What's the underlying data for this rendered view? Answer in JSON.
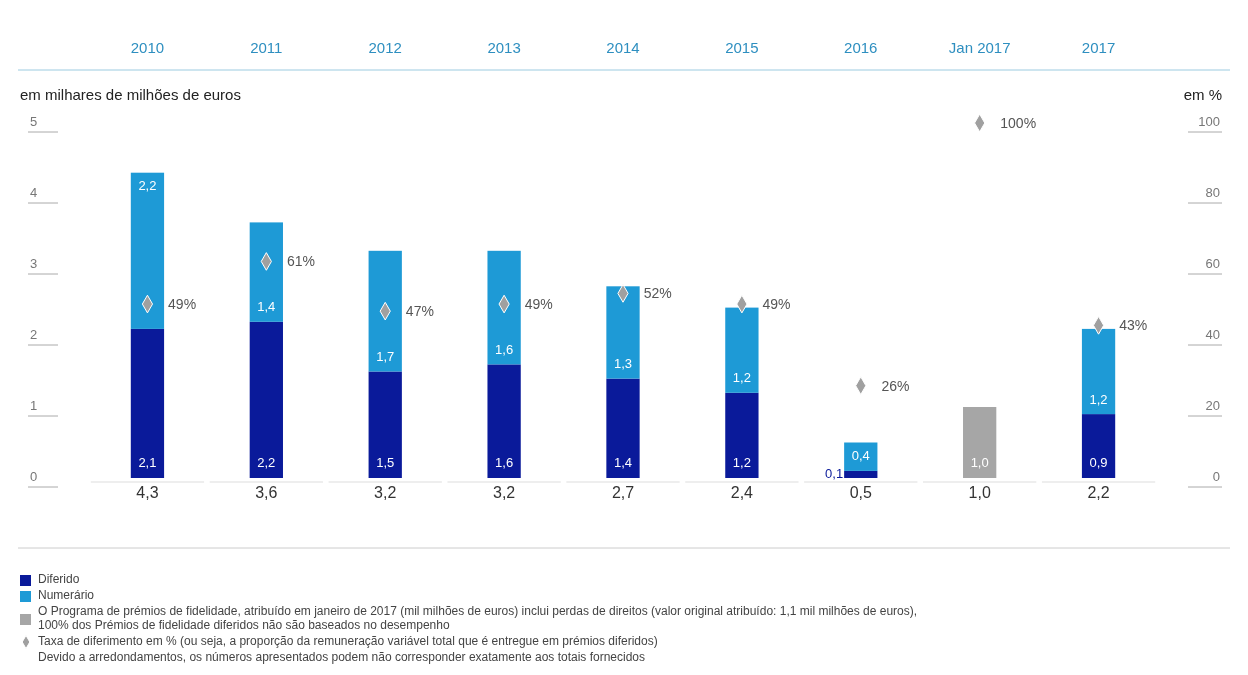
{
  "chart_data": {
    "type": "bar",
    "stacked": true,
    "legend": "bottom",
    "categories": [
      "2010",
      "2011",
      "2012",
      "2013",
      "2014",
      "2015",
      "2016",
      "Jan 2017",
      "2017"
    ],
    "ylabel": "em milhares de milhões de euros",
    "y2label": "em %",
    "ylim": [
      0,
      5
    ],
    "yticks": [
      0,
      1,
      2,
      3,
      4,
      5
    ],
    "y2lim": [
      0,
      100
    ],
    "y2ticks": [
      0,
      20,
      40,
      60,
      80,
      100
    ],
    "series": [
      {
        "name": "Diferido",
        "color": "#0a1a9a",
        "values": [
          2.1,
          2.2,
          1.5,
          1.6,
          1.4,
          1.2,
          0.1,
          null,
          0.9
        ],
        "value_labels": [
          "2,1",
          "2,2",
          "1,5",
          "1,6",
          "1,4",
          "1,2",
          "0,1",
          null,
          "0,9"
        ]
      },
      {
        "name": "Numerário",
        "color": "#1e9ad6",
        "values": [
          2.2,
          1.4,
          1.7,
          1.6,
          1.3,
          1.2,
          0.4,
          null,
          1.2
        ],
        "value_labels": [
          "2,2",
          "1,4",
          "1,7",
          "1,6",
          "1,3",
          "1,2",
          "0,4",
          null,
          "1,2"
        ]
      },
      {
        "name": "O Programa de prémios de fidelidade, atribuído em janeiro de 2017 (mil milhões de euros) inclui perdas de direitos (valor original atribuído: 1,1 mil milhões de euros), 100% dos Prémios de fidelidade diferidos não são baseados no desempenho",
        "color": "#a6a6a6",
        "values": [
          null,
          null,
          null,
          null,
          null,
          null,
          null,
          1.0,
          null
        ],
        "value_labels": [
          null,
          null,
          null,
          null,
          null,
          null,
          null,
          "1,0",
          null
        ]
      },
      {
        "name": "Taxa de diferimento em % (ou seja, a proporção da remuneração variável total que é entregue em prémios diferidos)",
        "type": "scatter",
        "axis": "y2",
        "marker": "diamond",
        "color": "#a0a0a0",
        "values": [
          49,
          61,
          47,
          49,
          52,
          49,
          26,
          100,
          43
        ],
        "value_labels": [
          "49%",
          "61%",
          "47%",
          "49%",
          "52%",
          "49%",
          "26%",
          "100%",
          "43%"
        ]
      }
    ],
    "totals": [
      "4,3",
      "3,6",
      "3,2",
      "3,2",
      "2,7",
      "2,4",
      "0,5",
      "1,0",
      "2,2"
    ],
    "annotations": [
      "Devido a arredondamentos, os números apresentados podem não corresponder exatamente aos totais fornecidos"
    ]
  }
}
